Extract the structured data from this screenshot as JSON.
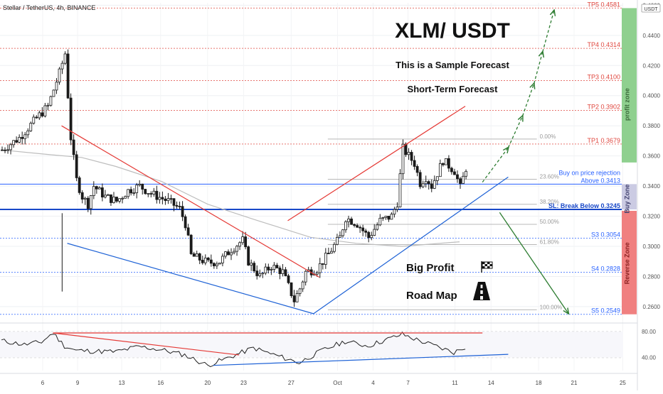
{
  "header": {
    "symbol_title": "Stellar / TetherUS, 4h, BINANCE",
    "currency_badge": "USDT"
  },
  "annotations": {
    "main_title": "XLM/ USDT",
    "sample_note": "This is a Sample Forecast",
    "term_note": "Short-Term Forecast",
    "big_profit": "Big Profit",
    "road_map": "Road Map",
    "flag_icon": "checkered-flag-icon",
    "road_icon": "road-icon"
  },
  "zones": {
    "profit": "profit zone",
    "buy": "Buy Zone",
    "reverse": "Reverse Zone"
  },
  "levels": [
    {
      "label": "TP5 0.4581",
      "value": 0.4581,
      "color": "#e0473f",
      "style": "dotted"
    },
    {
      "label": "TP4 0.4314",
      "value": 0.4314,
      "color": "#e0473f",
      "style": "dotted"
    },
    {
      "label": "TP3 0.4100",
      "value": 0.41,
      "color": "#e0473f",
      "style": "dotted"
    },
    {
      "label": "TP2 0.3902",
      "value": 0.3902,
      "color": "#e0473f",
      "style": "dotted"
    },
    {
      "label": "TP1 0.3679",
      "value": 0.3679,
      "color": "#e0473f",
      "style": "dotted"
    },
    {
      "label": "Above 0.3413",
      "value": 0.3413,
      "color": "#2962ff",
      "style": "solid"
    },
    {
      "label": "SL: Break Below 0.3245",
      "value": 0.3245,
      "color": "#1848c8",
      "style": "bold"
    },
    {
      "label": "S3 0.3054",
      "value": 0.3054,
      "color": "#2962ff",
      "style": "dotted"
    },
    {
      "label": "S4 0.2828",
      "value": 0.2828,
      "color": "#2962ff",
      "style": "dotted"
    },
    {
      "label": "S5 0.2549",
      "value": 0.2549,
      "color": "#2962ff",
      "style": "dotted"
    }
  ],
  "buy_rejection_label": "Buy on price rejection",
  "fibonacci": [
    {
      "label": "0.00%",
      "value": 0.3712
    },
    {
      "label": "23.60%",
      "value": 0.3445
    },
    {
      "label": "38.20%",
      "value": 0.3279
    },
    {
      "label": "50.00%",
      "value": 0.3146
    },
    {
      "label": "61.80%",
      "value": 0.3012
    },
    {
      "label": "100.00%",
      "value": 0.2579
    }
  ],
  "chart_data": {
    "type": "candlestick",
    "title": "Stellar / TetherUS, 4h, BINANCE",
    "x_ticks": [
      "6",
      "9",
      "13",
      "16",
      "20",
      "23",
      "27",
      "Oct",
      "4",
      "7",
      "11",
      "14",
      "18",
      "21",
      "25"
    ],
    "y_ticks": [
      "0.4600",
      "0.4400",
      "0.4200",
      "0.4000",
      "0.3800",
      "0.3600",
      "0.3400",
      "0.3200",
      "0.3000",
      "0.2800",
      "0.2600"
    ],
    "ylim": [
      0.251,
      0.4616
    ],
    "grid": true,
    "close_path": [
      [
        0,
        0.364
      ],
      [
        3,
        0.372
      ],
      [
        6,
        0.385
      ],
      [
        8,
        0.393
      ],
      [
        10,
        0.415
      ],
      [
        11,
        0.428
      ],
      [
        12,
        0.372
      ],
      [
        13,
        0.344
      ],
      [
        14,
        0.333
      ],
      [
        15,
        0.328
      ],
      [
        16,
        0.34
      ],
      [
        18,
        0.333
      ],
      [
        20,
        0.33
      ],
      [
        22,
        0.337
      ],
      [
        24,
        0.34
      ],
      [
        26,
        0.335
      ],
      [
        29,
        0.33
      ],
      [
        31,
        0.325
      ],
      [
        32,
        0.315
      ],
      [
        33,
        0.294
      ],
      [
        36,
        0.289
      ],
      [
        38,
        0.29
      ],
      [
        40,
        0.298
      ],
      [
        42,
        0.304
      ],
      [
        43,
        0.29
      ],
      [
        45,
        0.28
      ],
      [
        47,
        0.287
      ],
      [
        49,
        0.283
      ],
      [
        51,
        0.264
      ],
      [
        52,
        0.272
      ],
      [
        53,
        0.283
      ],
      [
        55,
        0.285
      ],
      [
        57,
        0.295
      ],
      [
        59,
        0.306
      ],
      [
        60,
        0.319
      ],
      [
        62,
        0.315
      ],
      [
        64,
        0.306
      ],
      [
        66,
        0.317
      ],
      [
        68,
        0.32
      ],
      [
        69,
        0.329
      ],
      [
        70,
        0.365
      ],
      [
        72,
        0.355
      ],
      [
        73,
        0.342
      ],
      [
        74,
        0.346
      ],
      [
        75,
        0.34
      ],
      [
        77,
        0.357
      ],
      [
        79,
        0.35
      ],
      [
        80,
        0.339
      ],
      [
        81,
        0.352
      ]
    ],
    "series": [
      {
        "name": "MA",
        "values": [
          [
            0,
            0.364
          ],
          [
            8,
            0.361
          ],
          [
            14,
            0.359
          ],
          [
            20,
            0.353
          ],
          [
            28,
            0.343
          ],
          [
            36,
            0.328
          ],
          [
            44,
            0.318
          ],
          [
            54,
            0.306
          ],
          [
            62,
            0.302
          ],
          [
            70,
            0.3
          ],
          [
            80,
            0.303
          ]
        ]
      }
    ],
    "trendlines": [
      {
        "color": "#e53935",
        "from": [
          10.5,
          0.38
        ],
        "to": [
          55.5,
          0.2795
        ]
      },
      {
        "color": "#1e62d6",
        "from": [
          11.5,
          0.302
        ],
        "to": [
          54.5,
          0.2553
        ]
      },
      {
        "color": "#e53935",
        "from": [
          50,
          0.317
        ],
        "to": [
          81,
          0.393
        ]
      },
      {
        "color": "#1e62d6",
        "from": [
          54.5,
          0.2553
        ],
        "to": [
          88.5,
          0.346
        ]
      }
    ],
    "forecast_arrows": [
      {
        "color": "#2e7d32",
        "from": [
          84,
          0.3426
        ],
        "to": [
          88.5,
          0.3655
        ]
      },
      {
        "color": "#2e7d32",
        "from": [
          88.5,
          0.3655
        ],
        "to": [
          91,
          0.3865
        ]
      },
      {
        "color": "#2e7d32",
        "from": [
          91,
          0.3865
        ],
        "to": [
          93,
          0.408
        ]
      },
      {
        "color": "#2e7d32",
        "from": [
          93,
          0.408
        ],
        "to": [
          94.5,
          0.429
        ]
      },
      {
        "color": "#2e7d32",
        "from": [
          94.5,
          0.429
        ],
        "to": [
          96.5,
          0.4565
        ]
      },
      {
        "color": "#2e7d32",
        "from": [
          87,
          0.3225
        ],
        "to": [
          99,
          0.2555
        ]
      }
    ],
    "rsi": {
      "ticks": [
        "80.00",
        "40.00"
      ],
      "ylim": [
        20,
        90
      ],
      "values": [
        [
          0,
          66
        ],
        [
          4,
          60
        ],
        [
          7,
          64
        ],
        [
          9,
          78
        ],
        [
          11,
          58
        ],
        [
          13,
          51
        ],
        [
          16,
          50
        ],
        [
          20,
          49
        ],
        [
          24,
          57
        ],
        [
          28,
          52
        ],
        [
          32,
          44
        ],
        [
          36,
          28
        ],
        [
          40,
          41
        ],
        [
          44,
          55
        ],
        [
          46,
          49
        ],
        [
          52,
          32
        ],
        [
          56,
          51
        ],
        [
          60,
          65
        ],
        [
          64,
          58
        ],
        [
          68,
          70
        ],
        [
          70,
          76
        ],
        [
          73,
          66
        ],
        [
          76,
          57
        ],
        [
          79,
          48
        ],
        [
          81,
          56
        ]
      ],
      "trendlines": [
        {
          "color": "#e53935",
          "from": [
            9,
            78
          ],
          "to": [
            41.5,
            44
          ]
        },
        {
          "color": "#1e62d6",
          "from": [
            37,
            28
          ],
          "to": [
            88.5,
            45
          ]
        },
        {
          "color": "#e53935",
          "from": [
            9,
            78
          ],
          "to": [
            84,
            78
          ]
        }
      ]
    },
    "forecast_markers": [
      "up-arrow",
      "down-arrow"
    ]
  },
  "colors": {
    "up": "#26a69a",
    "down": "#ef5350",
    "candle": "#1a1a1a",
    "profit_zone": "#8fd08f",
    "buy_zone": "#cbcbe3",
    "reverse_zone": "#f08080"
  }
}
